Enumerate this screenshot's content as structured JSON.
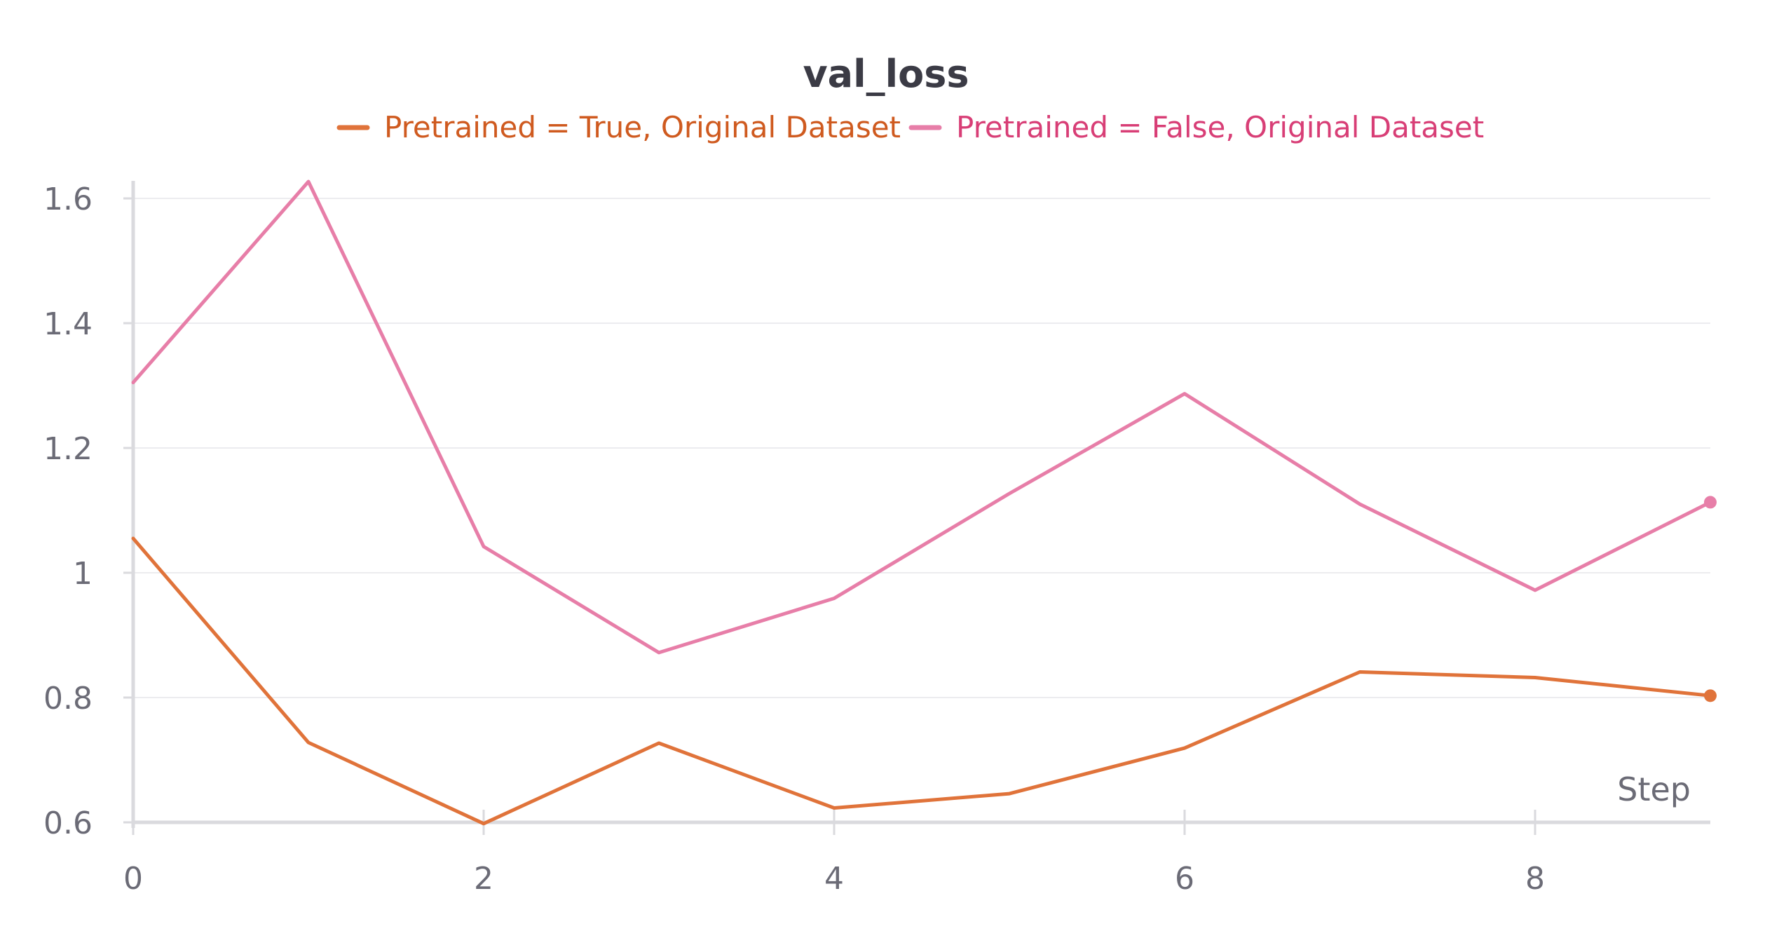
{
  "chart_data": {
    "type": "line",
    "title": "val_loss",
    "xlabel": "Step",
    "ylabel": "",
    "x": [
      0,
      1,
      2,
      3,
      4,
      5,
      6,
      7,
      8,
      9
    ],
    "xlim": [
      0,
      9
    ],
    "ylim": [
      0.6,
      1.63
    ],
    "x_ticks": [
      0,
      2,
      4,
      6,
      8
    ],
    "y_ticks": [
      0.6,
      0.8,
      1,
      1.2,
      1.4,
      1.6
    ],
    "x_tick_labels": [
      "0",
      "2",
      "4",
      "6",
      "8"
    ],
    "y_tick_labels": [
      "0.6",
      "0.8",
      "1",
      "1.2",
      "1.4",
      "1.6"
    ],
    "grid": true,
    "legend_position": "top-center",
    "series": [
      {
        "name": "Pretrained = True, Original Dataset",
        "color": "#e0733a",
        "label_color": "#cf5a1f",
        "values": [
          1.055,
          0.728,
          0.598,
          0.727,
          0.623,
          0.646,
          0.719,
          0.841,
          0.832,
          0.803
        ]
      },
      {
        "name": "Pretrained = False, Original Dataset",
        "color": "#e77ea8",
        "label_color": "#d83e76",
        "values": [
          1.305,
          1.627,
          1.042,
          0.872,
          0.959,
          1.127,
          1.287,
          1.11,
          0.972,
          1.113
        ]
      }
    ]
  }
}
